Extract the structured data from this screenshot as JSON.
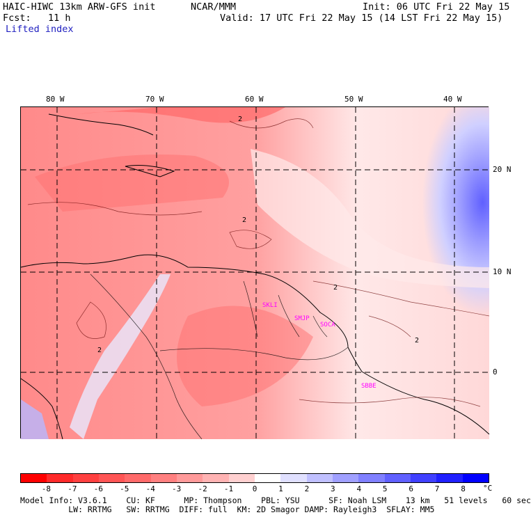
{
  "header": {
    "model": "HAIC-HIWC 13km ARW-GFS init",
    "org": "NCAR/MMM",
    "init": "Init: 06 UTC Fri 22 May 15",
    "fcst": "Fcst:   11 h",
    "valid": "Valid: 17 UTC Fri 22 May 15 (14 LST Fri 22 May 15)",
    "field": "Lifted index"
  },
  "map": {
    "lon_labels": [
      "80 W",
      "70 W",
      "60 W",
      "50 W",
      "40 W"
    ],
    "lat_labels": [
      "20 N",
      "10 N",
      "0"
    ],
    "contour_labels": [
      "2",
      "2",
      "2",
      "2",
      "2"
    ],
    "stations": [
      "SKLI",
      "SMJP",
      "SOCA",
      "SBBE"
    ],
    "station_color": "#ff00ff"
  },
  "colorbar": {
    "ticks": [
      "-8",
      "-7",
      "-6",
      "-5",
      "-4",
      "-3",
      "-2",
      "-1",
      "0",
      "1",
      "2",
      "3",
      "4",
      "5",
      "6",
      "7",
      "8"
    ],
    "unit": "°C",
    "colors": [
      "#ff0000",
      "#ff2a2a",
      "#ff4040",
      "#ff5555",
      "#ff6a6a",
      "#ff8080",
      "#ff9a9a",
      "#ffb3b3",
      "#ffd0d0",
      "#ffffff",
      "#e0e0ff",
      "#c0c0ff",
      "#a0a0ff",
      "#8080ff",
      "#6060ff",
      "#4040ff",
      "#2020ff",
      "#0000ff"
    ]
  },
  "footer": {
    "line1": "Model Info: V3.6.1    CU: KF      MP: Thompson    PBL: YSU      SF: Noah LSM    13 km   51 levels   60 sec",
    "line2": "          LW: RRTMG   SW: RRTMG  DIFF: full  KM: 2D Smagor DAMP: Rayleigh3  SFLAY: MM5"
  }
}
